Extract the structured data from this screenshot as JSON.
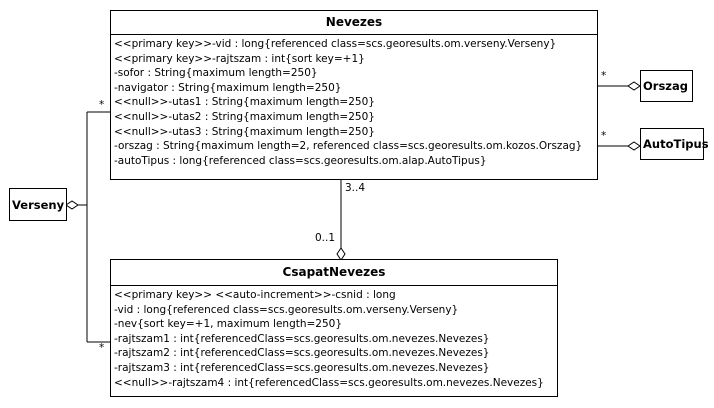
{
  "nevezes": {
    "title": "Nevezes",
    "attrs": [
      "<<primary key>>-vid : long{referenced class=scs.georesults.om.verseny.Verseny}",
      "<<primary key>>-rajtszam : int{sort key=+1}",
      "-sofor : String{maximum length=250}",
      "-navigator : String{maximum length=250}",
      "<<null>>-utas1 : String{maximum length=250}",
      "<<null>>-utas2 : String{maximum length=250}",
      "<<null>>-utas3 : String{maximum length=250}",
      "-orszag : String{maximum length=2, referenced class=scs.georesults.om.kozos.Orszag}",
      "-autoTipus : long{referenced class=scs.georesults.om.alap.AutoTipus}"
    ]
  },
  "csapat": {
    "title": "CsapatNevezes",
    "attrs": [
      "<<primary key>> <<auto-increment>>-csnid : long",
      "-vid : long{referenced class=scs.georesults.om.verseny.Verseny}",
      "-nev{sort key=+1, maximum length=250}",
      "-rajtszam1 : int{referencedClass=scs.georesults.om.nevezes.Nevezes}",
      "-rajtszam2 : int{referencedClass=scs.georesults.om.nevezes.Nevezes}",
      "-rajtszam3 : int{referencedClass=scs.georesults.om.nevezes.Nevezes}",
      "<<null>>-rajtszam4 : int{referencedClass=scs.georesults.om.nevezes.Nevezes}"
    ]
  },
  "orszag": {
    "title": "Orszag"
  },
  "autotipus": {
    "title": "AutoTipus"
  },
  "verseny": {
    "title": "Verseny"
  },
  "multiplicities": {
    "orszag_end": "*",
    "autotipus_end": "*",
    "verseny_nevezes_end": "*",
    "verseny_csapat_end": "*",
    "nevezes_end": "3..4",
    "csapat_end": "0..1"
  }
}
